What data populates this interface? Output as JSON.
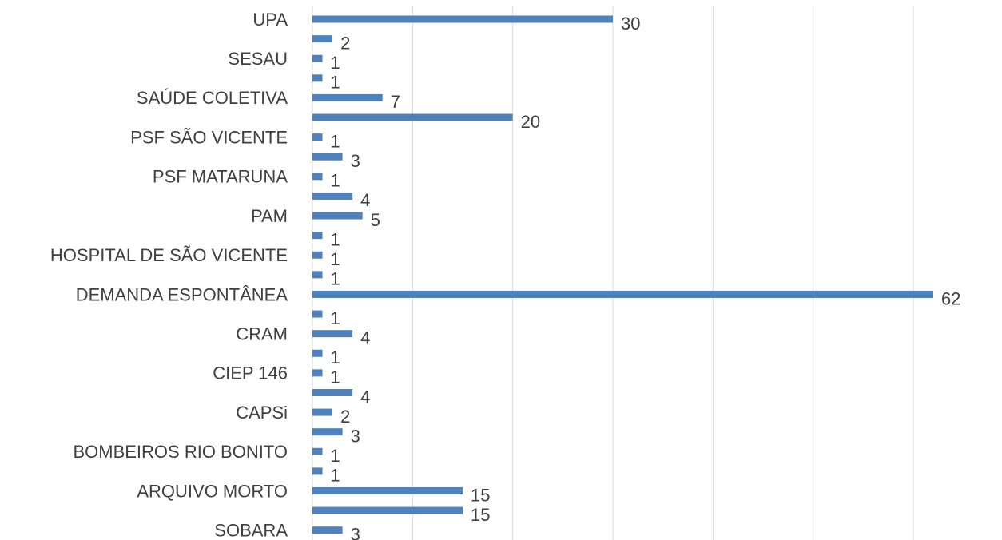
{
  "chart_data": {
    "type": "barh",
    "categories": [
      "UPA",
      null,
      "SESAU",
      null,
      "SAÚDE COLETIVA",
      null,
      "PSF SÃO VICENTE",
      null,
      "PSF MATARUNA",
      null,
      "PAM",
      null,
      "HOSPITAL DE SÃO VICENTE",
      null,
      "DEMANDA ESPONTÂNEA",
      null,
      "CRAM",
      null,
      "CIEP 146",
      null,
      "CAPSi",
      null,
      "BOMBEIROS RIO BONITO",
      null,
      "ARQUIVO MORTO",
      null,
      "SOBARA"
    ],
    "values": [
      30,
      2,
      1,
      1,
      7,
      20,
      1,
      3,
      1,
      4,
      5,
      1,
      1,
      1,
      62,
      1,
      4,
      1,
      1,
      4,
      2,
      3,
      1,
      1,
      15,
      15,
      3
    ],
    "color": "#4f81bd",
    "xlim": [
      0,
      62
    ],
    "xticks": [
      0,
      10,
      20,
      30,
      40,
      50,
      60
    ],
    "grid": true
  }
}
